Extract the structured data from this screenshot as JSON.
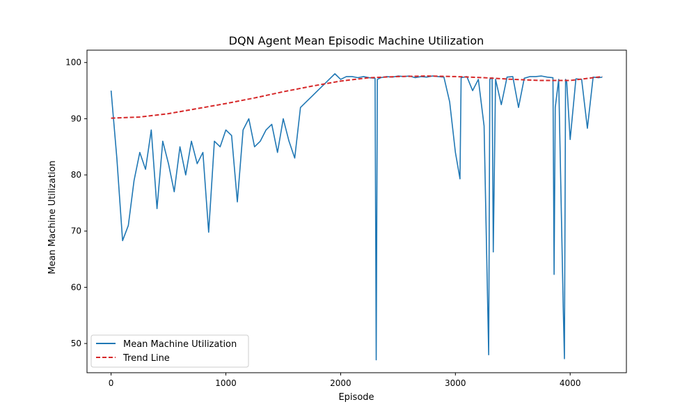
{
  "chart_data": {
    "type": "line",
    "title": "DQN Agent Mean Episodic Machine Utilization",
    "xlabel": "Episode",
    "ylabel": "Mean Machine Utilization",
    "xlim": [
      -210,
      4490
    ],
    "ylim": [
      44.8,
      102.2
    ],
    "x_ticks": [
      0,
      1000,
      2000,
      3000,
      4000
    ],
    "y_ticks": [
      50,
      60,
      70,
      80,
      90,
      100
    ],
    "grid": false,
    "legend_position": "lower-left",
    "series": [
      {
        "name": "Mean Machine Utilization",
        "color": "#1f77b4",
        "style": "solid",
        "x": [
          0,
          50,
          100,
          150,
          200,
          250,
          300,
          350,
          400,
          450,
          500,
          550,
          600,
          650,
          700,
          750,
          800,
          850,
          900,
          950,
          1000,
          1050,
          1100,
          1150,
          1200,
          1250,
          1300,
          1350,
          1400,
          1450,
          1500,
          1550,
          1600,
          1650,
          1700,
          1750,
          1800,
          1850,
          1900,
          1950,
          2000,
          2050,
          2100,
          2150,
          2200,
          2250,
          2300,
          2310,
          2320,
          2350,
          2400,
          2450,
          2500,
          2550,
          2600,
          2650,
          2700,
          2750,
          2800,
          2850,
          2900,
          2950,
          3000,
          3040,
          3050,
          3100,
          3150,
          3200,
          3250,
          3290,
          3300,
          3320,
          3330,
          3350,
          3400,
          3450,
          3500,
          3550,
          3600,
          3650,
          3700,
          3750,
          3800,
          3850,
          3860,
          3870,
          3900,
          3940,
          3950,
          3960,
          3970,
          4000,
          4050,
          4100,
          4150,
          4200,
          4250,
          4280
        ],
        "y": [
          95,
          83,
          68.3,
          71,
          79,
          84,
          81,
          88,
          74,
          86,
          82,
          77,
          85,
          80,
          86,
          82,
          84,
          69.8,
          86,
          85,
          88,
          87,
          75.2,
          88,
          90,
          85,
          86,
          88,
          89,
          84,
          90,
          86,
          83,
          92,
          93,
          94,
          95,
          96,
          97,
          98,
          97,
          97.5,
          97.5,
          97.3,
          97.5,
          97.3,
          97.2,
          47.1,
          97,
          97.3,
          97.5,
          97.4,
          97.6,
          97.5,
          97.6,
          97.3,
          97.5,
          97.4,
          97.6,
          97.5,
          97.4,
          93,
          84,
          79.3,
          97.3,
          97.5,
          95,
          97,
          88.7,
          48,
          97,
          97.3,
          66.3,
          97,
          92.5,
          97.4,
          97.5,
          92,
          97.2,
          97.5,
          97.5,
          97.6,
          97.4,
          97.3,
          62.3,
          92,
          97,
          56,
          47.3,
          97,
          96.5,
          86.3,
          97.1,
          97,
          88.3,
          97.4,
          97.3,
          97.4
        ]
      },
      {
        "name": "Trend Line",
        "color": "#d62728",
        "style": "dashed",
        "x": [
          0,
          250,
          500,
          750,
          1000,
          1250,
          1500,
          1750,
          2000,
          2250,
          2500,
          2750,
          3000,
          3250,
          3500,
          3750,
          4000,
          4280
        ],
        "y": [
          90.1,
          90.3,
          90.9,
          91.8,
          92.7,
          93.7,
          94.8,
          95.8,
          96.7,
          97.3,
          97.5,
          97.6,
          97.5,
          97.3,
          97.0,
          96.8,
          96.8,
          97.5
        ]
      }
    ]
  }
}
